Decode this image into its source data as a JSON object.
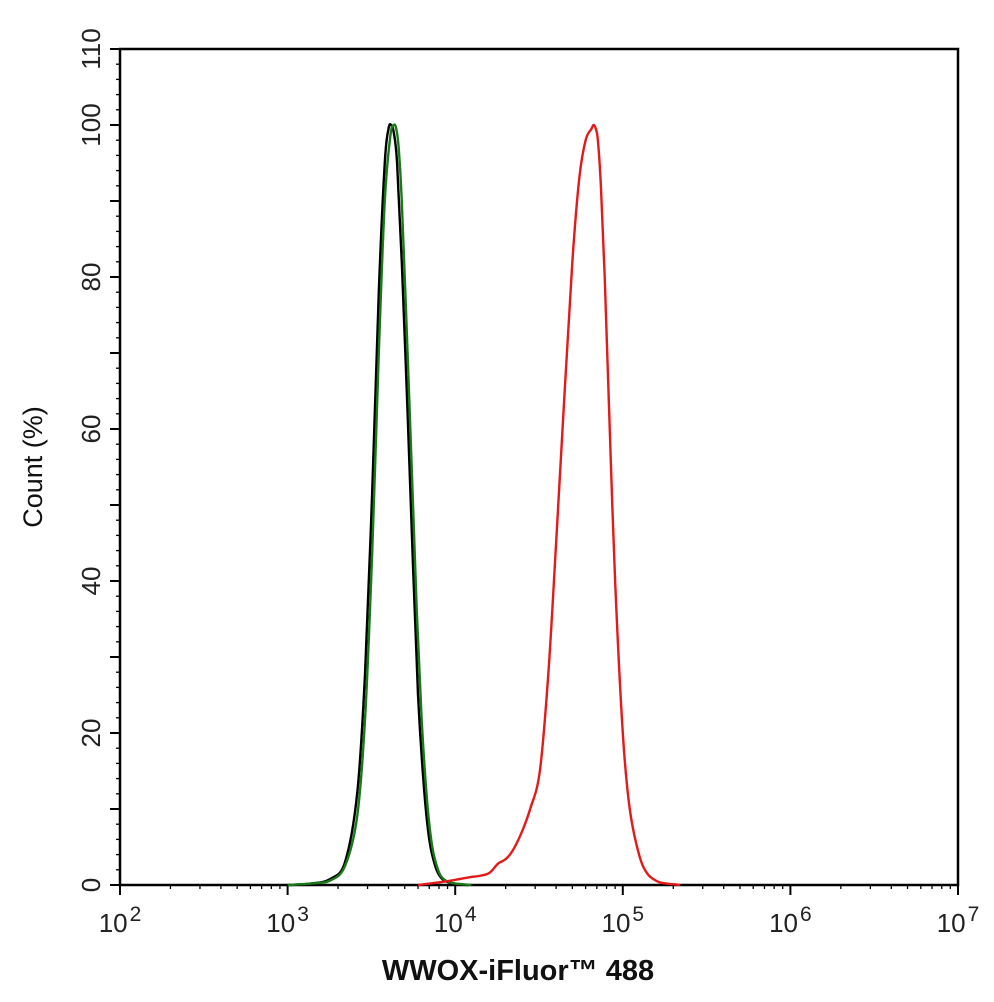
{
  "chart_data": {
    "type": "line",
    "xlabel": "WWOX-iFluor™ 488",
    "ylabel": "Count  (%)",
    "x_scale": "log",
    "xlim": [
      100,
      10000000
    ],
    "ylim": [
      0,
      110
    ],
    "x_ticks": [
      {
        "value": 100,
        "base": "10",
        "exp": "2"
      },
      {
        "value": 1000,
        "base": "10",
        "exp": "3"
      },
      {
        "value": 10000,
        "base": "10",
        "exp": "4"
      },
      {
        "value": 100000,
        "base": "10",
        "exp": "5"
      },
      {
        "value": 1000000,
        "base": "10",
        "exp": "6"
      },
      {
        "value": 10000000,
        "base": "10",
        "exp": "7"
      }
    ],
    "y_ticks": [
      "0",
      "20",
      "40",
      "60",
      "80",
      "100",
      "110"
    ],
    "grid": false,
    "series": [
      {
        "color": "#000000",
        "x": [
          1000,
          1400,
          1800,
          2200,
          2600,
          2900,
          3200,
          3500,
          3800,
          4000,
          4150,
          4300,
          4500,
          4800,
          5200,
          5600,
          6000,
          6500,
          7000,
          7600,
          8200,
          9000,
          10500,
          12000
        ],
        "y": [
          0,
          0.2,
          0.8,
          3,
          12,
          28,
          52,
          78,
          95,
          99.5,
          100,
          99,
          95,
          82,
          62,
          42,
          25,
          13,
          6,
          2.5,
          1,
          0.4,
          0.1,
          0
        ]
      },
      {
        "color": "#1a7a1a",
        "x": [
          1000,
          1400,
          1800,
          2200,
          2600,
          2900,
          3200,
          3500,
          3800,
          4100,
          4300,
          4450,
          4600,
          4800,
          5100,
          5500,
          5900,
          6300,
          6800,
          7300,
          7900,
          8500,
          9500,
          11000,
          12500
        ],
        "y": [
          0,
          0.2,
          0.6,
          2.5,
          9,
          22,
          44,
          70,
          90,
          98.5,
          100,
          99.5,
          97,
          90,
          75,
          55,
          36,
          22,
          11,
          5,
          2,
          0.8,
          0.3,
          0.1,
          0
        ]
      },
      {
        "color": "#e31a1a",
        "x": [
          6000,
          9000,
          12000,
          14000,
          16000,
          18000,
          20000,
          22000,
          25000,
          28000,
          32000,
          36000,
          40000,
          45000,
          50000,
          55000,
          60000,
          65000,
          67000,
          69000,
          71000,
          74000,
          78000,
          83000,
          90000,
          100000,
          110000,
          125000,
          140000,
          160000,
          180000,
          200000,
          220000
        ],
        "y": [
          0,
          0.5,
          1,
          1.2,
          1.6,
          2.8,
          3.4,
          4.5,
          7,
          10,
          15,
          28,
          45,
          65,
          82,
          93,
          98,
          99.5,
          100,
          99.5,
          98,
          92,
          80,
          62,
          40,
          20,
          10,
          4,
          1.5,
          0.5,
          0.2,
          0.1,
          0
        ]
      }
    ]
  }
}
